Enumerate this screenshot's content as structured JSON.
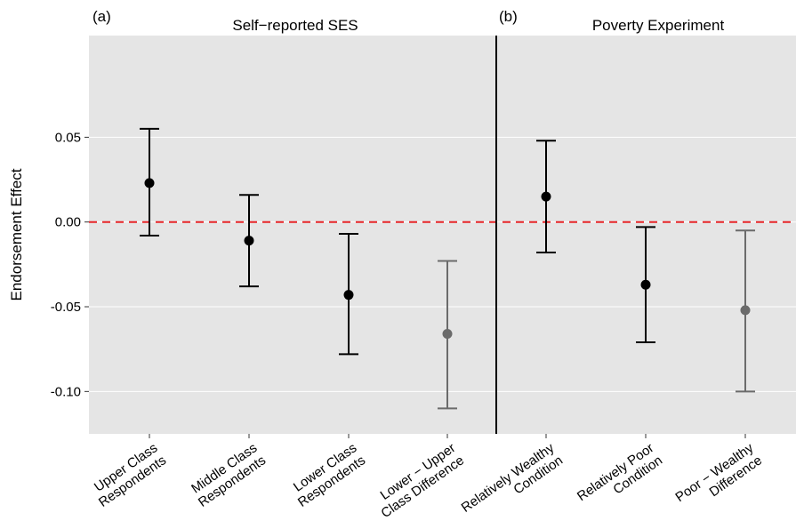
{
  "chart_data": {
    "type": "scatter",
    "ylabel": "Endorsement Effect",
    "ylim": [
      -0.125,
      0.11
    ],
    "yticks": [
      {
        "value": 0.05,
        "label": "0.05"
      },
      {
        "value": 0.0,
        "label": "0.00"
      },
      {
        "value": -0.05,
        "label": "-0.05"
      },
      {
        "value": -0.1,
        "label": "-0.10"
      }
    ],
    "reference_line": {
      "value": 0.0,
      "color": "#e8262a",
      "style": "dashed"
    },
    "grid": true,
    "panels": [
      {
        "letter": "(a)",
        "title": "Self−reported SES",
        "points": [
          {
            "line1": "Upper Class",
            "line2": "Respondents",
            "estimate": 0.023,
            "lower": -0.008,
            "upper": 0.055,
            "color": "#000000"
          },
          {
            "line1": "Middle Class",
            "line2": "Respondents",
            "estimate": -0.011,
            "lower": -0.038,
            "upper": 0.016,
            "color": "#000000"
          },
          {
            "line1": "Lower Class",
            "line2": "Respondents",
            "estimate": -0.043,
            "lower": -0.078,
            "upper": -0.007,
            "color": "#000000"
          },
          {
            "line1": "Lower − Upper",
            "line2": "Class Difference",
            "estimate": -0.066,
            "lower": -0.11,
            "upper": -0.023,
            "color": "#6b6b6b"
          }
        ]
      },
      {
        "letter": "(b)",
        "title": "Poverty Experiment",
        "points": [
          {
            "line1": "Relatively Wealthy",
            "line2": "Condition",
            "estimate": 0.015,
            "lower": -0.018,
            "upper": 0.048,
            "color": "#000000"
          },
          {
            "line1": "Relatively Poor",
            "line2": "Condition",
            "estimate": -0.037,
            "lower": -0.071,
            "upper": -0.003,
            "color": "#000000"
          },
          {
            "line1": "Poor − Wealthy",
            "line2": "Difference",
            "estimate": -0.052,
            "lower": -0.1,
            "upper": -0.005,
            "color": "#6b6b6b"
          }
        ]
      }
    ],
    "colors": {
      "panel_background": "#e5e5e5",
      "gridline": "#ffffff",
      "separator": "#000000"
    }
  }
}
